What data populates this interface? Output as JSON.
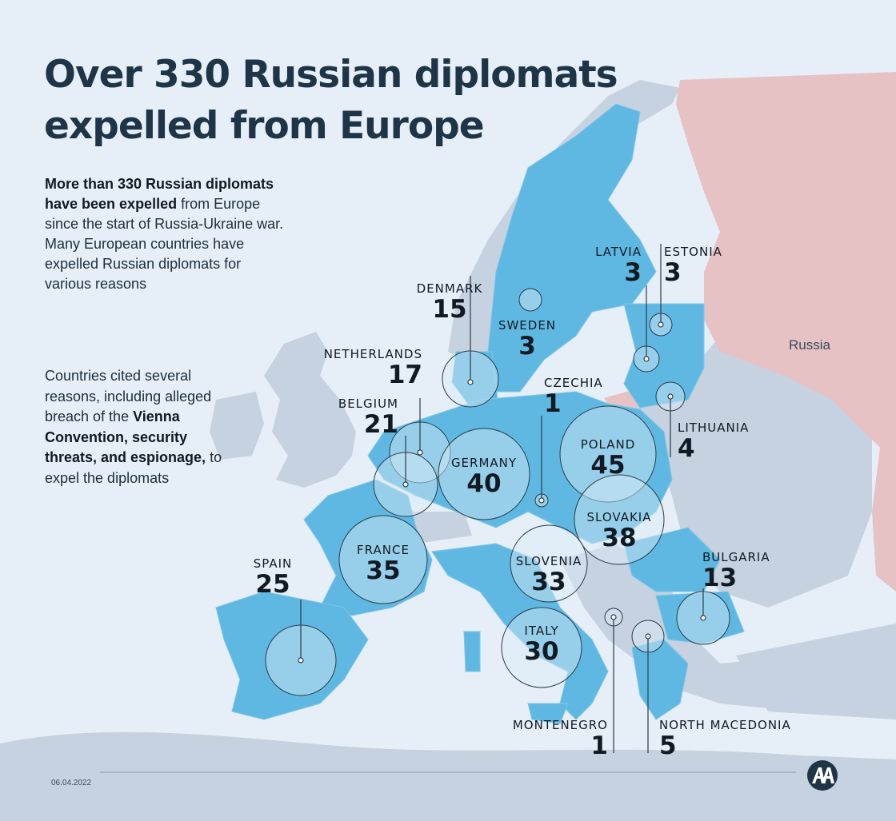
{
  "title": {
    "line1": "Over 330 Russian diplomats",
    "line2": "expelled from Europe"
  },
  "intro": {
    "bold": "More than 330 Russian diplomats have been expelled",
    "rest": " from Europe since the start of Russia-Ukraine war. Many European countries have expelled Russian diplomats for various reasons"
  },
  "reasons": {
    "before": "Countries cited several reasons, including alleged breach of the ",
    "bold": "Vienna Convention, security threats, and espionage,",
    "after": " to expel the diplomats"
  },
  "russia_label": "Russia",
  "date": "06.04.2022",
  "colors": {
    "eu_blue": "#5fb8e2",
    "russia_pink": "#e6c2c5",
    "non_eu_land": "#c6d2e0",
    "sea": "#e6eef7",
    "title": "#1d3547"
  },
  "logo_icon": "aa-agency-logo-icon",
  "countries": [
    {
      "id": "denmark",
      "name": "DENMARK",
      "value": 15
    },
    {
      "id": "sweden",
      "name": "SWEDEN",
      "value": 3
    },
    {
      "id": "netherlands",
      "name": "NETHERLANDS",
      "value": 17
    },
    {
      "id": "belgium",
      "name": "BELGIUM",
      "value": 21
    },
    {
      "id": "czechia",
      "name": "CZECHIA",
      "value": 1
    },
    {
      "id": "germany",
      "name": "GERMANY",
      "value": 40
    },
    {
      "id": "poland",
      "name": "POLAND",
      "value": 45
    },
    {
      "id": "latvia",
      "name": "LATVIA",
      "value": 3
    },
    {
      "id": "estonia",
      "name": "ESTONIA",
      "value": 3
    },
    {
      "id": "lithuania",
      "name": "LITHUANIA",
      "value": 4
    },
    {
      "id": "slovakia",
      "name": "SLOVAKIA",
      "value": 38
    },
    {
      "id": "france",
      "name": "FRANCE",
      "value": 35
    },
    {
      "id": "spain",
      "name": "SPAIN",
      "value": 25
    },
    {
      "id": "slovenia",
      "name": "SLOVENIA",
      "value": 33
    },
    {
      "id": "italy",
      "name": "ITALY",
      "value": 30
    },
    {
      "id": "bulgaria",
      "name": "BULGARIA",
      "value": 13
    },
    {
      "id": "montenegro",
      "name": "MONTENEGRO",
      "value": 1
    },
    {
      "id": "north_macedonia",
      "name": "NORTH MACEDONIA",
      "value": 5
    }
  ]
}
